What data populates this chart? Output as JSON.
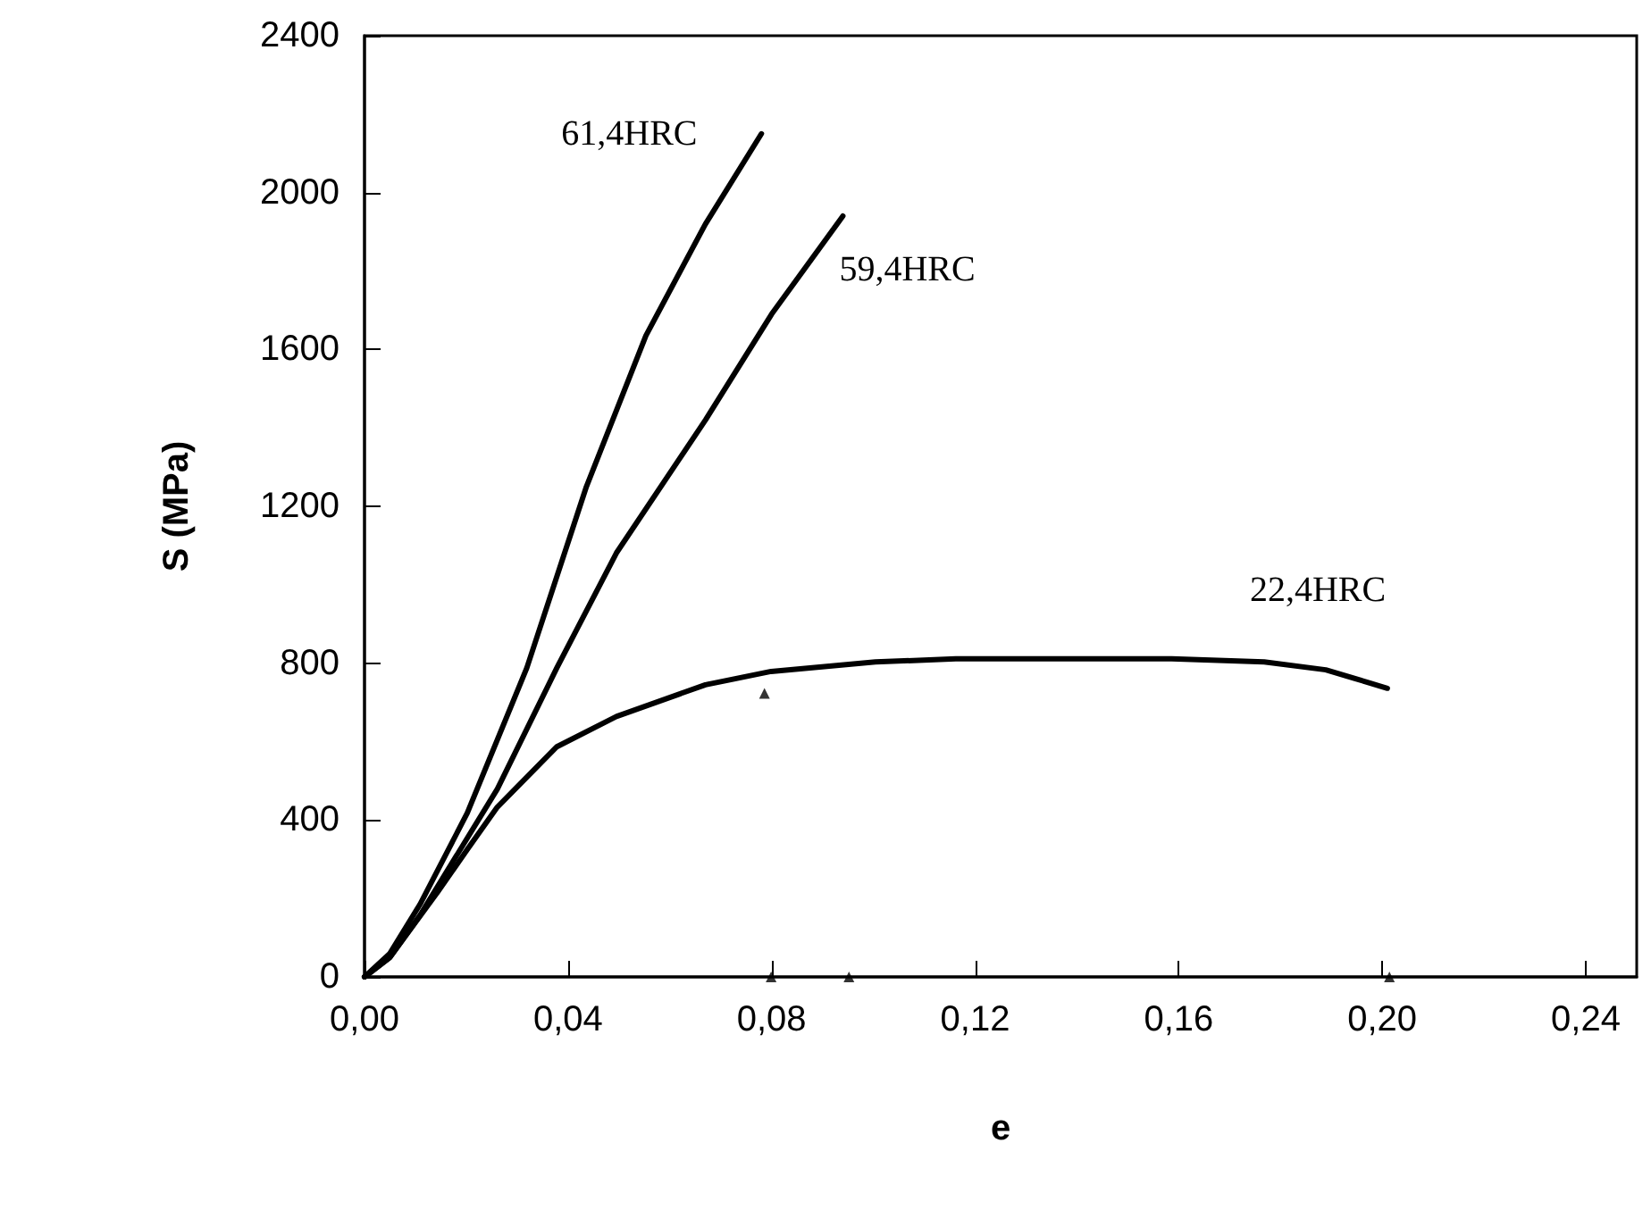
{
  "chart_data": {
    "type": "line",
    "xlabel": "e",
    "ylabel": "S (MPa)",
    "xlim": [
      0,
      0.25
    ],
    "xticks": [
      {
        "value": 0,
        "label": "0,00"
      },
      {
        "value": 0.04,
        "label": "0,04"
      },
      {
        "value": 0.08,
        "label": "0,08"
      },
      {
        "value": 0.12,
        "label": "0,12"
      },
      {
        "value": 0.16,
        "label": "0,16"
      },
      {
        "value": 0.2,
        "label": "0,20"
      },
      {
        "value": 0.24,
        "label": "0,24"
      }
    ],
    "ylim": [
      0,
      2400
    ],
    "yticks": [
      0,
      400,
      800,
      1200,
      1600,
      2000,
      2400
    ],
    "grid": false,
    "legend": false,
    "marker": "none",
    "line_style": "solid",
    "series": [
      {
        "name": "61,4HRC",
        "color": "#000000",
        "x": [
          0,
          0.005,
          0.0109,
          0.0202,
          0.0319,
          0.0436,
          0.0553,
          0.067,
          0.078
        ],
        "values": [
          0,
          60,
          185,
          418,
          788,
          1250,
          1635,
          1920,
          2150
        ]
      },
      {
        "name": "59,4HRC",
        "color": "#000000",
        "x": [
          0,
          0.005,
          0.0109,
          0.0261,
          0.0378,
          0.0495,
          0.067,
          0.08,
          0.094
        ],
        "values": [
          0,
          50,
          157,
          479,
          788,
          1081,
          1420,
          1690,
          1940
        ]
      },
      {
        "name": "22,4HRC",
        "color": "#000000",
        "x": [
          0,
          0.005,
          0.0144,
          0.0202,
          0.0261,
          0.0378,
          0.0495,
          0.067,
          0.0799,
          0.1004,
          0.1162,
          0.1586,
          0.1768,
          0.1889,
          0.201
        ],
        "values": [
          0,
          50,
          217,
          325,
          433,
          587,
          664,
          745,
          779,
          803,
          811,
          811,
          803,
          783,
          736
        ]
      },
      {
        "type": "scatter",
        "marker": "triangle",
        "color": "#000000",
        "x": [
          0.0786,
          0.0799,
          0.0952,
          0.2014
        ],
        "values": [
          723,
          0,
          0,
          0
        ]
      }
    ]
  }
}
